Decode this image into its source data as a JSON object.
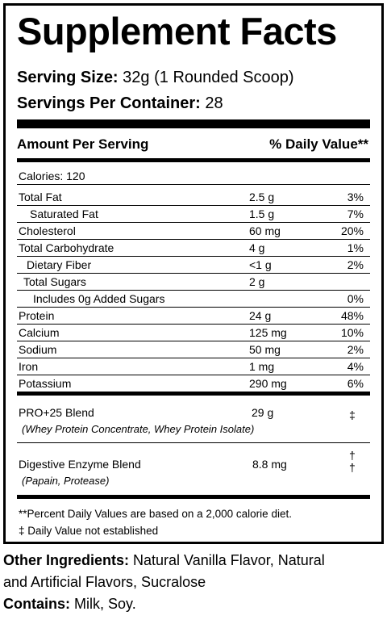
{
  "title": "Supplement Facts",
  "serving_size": {
    "label": "Serving Size:",
    "value": "32g (1 Rounded Scoop)"
  },
  "servings_per_container": {
    "label": "Servings Per Container:",
    "value": "28"
  },
  "header": {
    "amount_per_serving": "Amount Per Serving",
    "daily_value": "% Daily Value**"
  },
  "calories": "Calories: 120",
  "nutrients": [
    {
      "name": "Total Fat",
      "amount": "2.5 g",
      "dv": "3%"
    },
    {
      "name": "Saturated Fat",
      "amount": "1.5 g",
      "dv": "7%"
    },
    {
      "name": "Cholesterol",
      "amount": "60 mg",
      "dv": "20%"
    },
    {
      "name": "Total Carbohydrate",
      "amount": "4 g",
      "dv": "1%"
    },
    {
      "name": "Dietary Fiber",
      "amount": "<1 g",
      "dv": "2%"
    },
    {
      "name": "Total Sugars",
      "amount": "2 g",
      "dv": ""
    },
    {
      "name": "Includes 0g Added Sugars",
      "amount": "",
      "dv": "0%"
    },
    {
      "name": "Protein",
      "amount": "24 g",
      "dv": "48%"
    },
    {
      "name": "Calcium",
      "amount": "125 mg",
      "dv": "10%"
    },
    {
      "name": "Sodium",
      "amount": "50 mg",
      "dv": "2%"
    },
    {
      "name": "Iron",
      "amount": "1 mg",
      "dv": "4%"
    },
    {
      "name": "Potassium",
      "amount": "290 mg",
      "dv": "6%"
    }
  ],
  "blends": [
    {
      "name": "PRO+25 Blend",
      "amount": "29 g",
      "dv": "‡",
      "ingredients": "(Whey Protein Concentrate, Whey Protein Isolate)"
    },
    {
      "name": "Digestive Enzyme Blend",
      "amount": "8.8 mg",
      "dv": "†",
      "ingredients": "(Papain, Protease)"
    }
  ],
  "footnotes": {
    "percent_dv": "**Percent Daily Values are based on a 2,000 calorie diet.",
    "not_established_symbol": "‡",
    "not_established_text": "Daily Value not established"
  },
  "other_ingredients": {
    "label": "Other Ingredients:",
    "line1": "Natural Vanilla Flavor, Natural",
    "line2": "and Artificial Flavors, Sucralose"
  },
  "contains": {
    "label": "Contains:",
    "value": "Milk, Soy."
  }
}
